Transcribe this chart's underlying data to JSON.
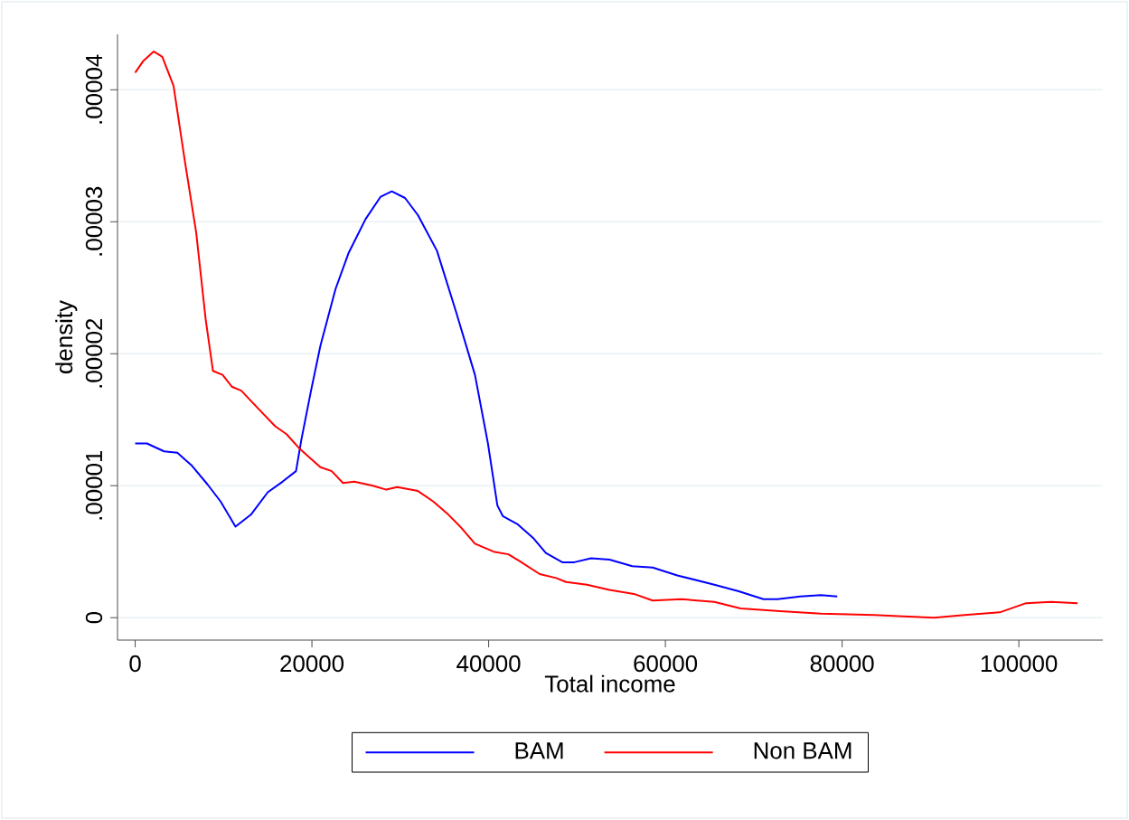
{
  "chart_data": {
    "type": "line",
    "xlabel": "Total income",
    "ylabel": "density",
    "xlim": [
      -2000,
      109500
    ],
    "ylim": [
      -1.7e-06,
      4.42e-05
    ],
    "xticks": [
      0,
      20000,
      40000,
      60000,
      80000,
      100000
    ],
    "yticks": [
      0,
      {
        "value": 1e-05,
        "label": ".00001"
      },
      {
        "value": 2e-05,
        "label": ".00002"
      },
      {
        "value": 3e-05,
        "label": ".00003"
      },
      {
        "value": 4e-05,
        "label": ".00004"
      }
    ],
    "grid": "y",
    "legend": "bottom",
    "marker": "none",
    "line_style": "solid",
    "series": [
      {
        "name": "BAM",
        "color": "#0000ff",
        "x": [
          0,
          1330,
          3270,
          4770,
          6440,
          8180,
          9670,
          11350,
          13090,
          15000,
          16670,
          18200,
          18810,
          19900,
          20960,
          22670,
          24130,
          26070,
          27780,
          29040,
          30540,
          32000,
          34150,
          36300,
          38450,
          39920,
          40990,
          41600,
          43230,
          45090,
          46470,
          48330,
          49700,
          51590,
          53680,
          56250,
          58560,
          61350,
          65540,
          68300,
          71100,
          72700,
          75260,
          77610,
          79450
        ],
        "values": [
          1.32e-05,
          1.32e-05,
          1.26e-05,
          1.25e-05,
          1.15e-05,
          1.01e-05,
          8.8e-06,
          6.9e-06,
          7.8e-06,
          9.5e-06,
          1.03e-05,
          1.11e-05,
          1.35e-05,
          1.72e-05,
          2.06e-05,
          2.49e-05,
          2.76e-05,
          3.02e-05,
          3.19e-05,
          3.23e-05,
          3.18e-05,
          3.05e-05,
          2.78e-05,
          2.32e-05,
          1.84e-05,
          1.32e-05,
          8.5e-06,
          7.7e-06,
          7.1e-06,
          6e-06,
          4.9e-06,
          4.2e-06,
          4.2e-06,
          4.5e-06,
          4.4e-06,
          3.9e-06,
          3.8e-06,
          3.2e-06,
          2.5e-06,
          2e-06,
          1.4e-06,
          1.4e-06,
          1.6e-06,
          1.7e-06,
          1.6e-06
        ]
      },
      {
        "name": "Non BAM",
        "color": "#ff0000",
        "x": [
          0,
          940,
          2090,
          3070,
          4340,
          5620,
          6900,
          7980,
          8800,
          9890,
          10940,
          12010,
          13700,
          15850,
          17130,
          18610,
          20960,
          22240,
          23520,
          24790,
          26890,
          28420,
          29650,
          32000,
          33740,
          35450,
          36910,
          38450,
          40560,
          42230,
          43460,
          45780,
          47650,
          48770,
          51120,
          53680,
          56440,
          58560,
          61810,
          65540,
          68510,
          72970,
          77610,
          83640,
          86910,
          90390,
          93870,
          97830,
          100820,
          103640,
          106650
        ],
        "values": [
          4.13e-05,
          4.22e-05,
          4.29e-05,
          4.25e-05,
          4.03e-05,
          3.46e-05,
          2.92e-05,
          2.26e-05,
          1.87e-05,
          1.84e-05,
          1.75e-05,
          1.72e-05,
          1.6e-05,
          1.45e-05,
          1.39e-05,
          1.28e-05,
          1.14e-05,
          1.11e-05,
          1.02e-05,
          1.03e-05,
          1e-05,
          9.7e-06,
          9.9e-06,
          9.6e-06,
          8.8e-06,
          7.8e-06,
          6.8e-06,
          5.6e-06,
          5e-06,
          4.8e-06,
          4.3e-06,
          3.3e-06,
          3e-06,
          2.7e-06,
          2.5e-06,
          2.1e-06,
          1.8e-06,
          1.3e-06,
          1.4e-06,
          1.2e-06,
          7e-07,
          5e-07,
          3e-07,
          2e-07,
          1e-07,
          0.0,
          2e-07,
          4e-07,
          1.1e-06,
          1.2e-06,
          1.1e-06
        ]
      }
    ]
  }
}
